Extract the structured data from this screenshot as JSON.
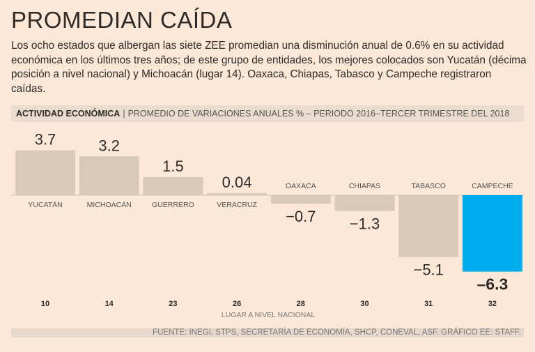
{
  "title": "PROMEDIAN CAÍDA",
  "lede": "Los ocho estados que albergan las siete ZEE promedian una disminución anual de 0.6% en su actividad económica en los últimos tres años; de este grupo de entidades, los mejores colocados son Yucatán (décima posición a nivel nacional) y Michoacán (lugar 14). Oaxaca, Chiapas, Tabasco y Campeche registraron caídas.",
  "header": {
    "label": "ACTIVIDAD ECONÓMICA",
    "subtitle": "PROMEDIO DE VARIACIONES ANUALES % – PERIODO 2016–TERCER TRIMESTRE DEL 2018"
  },
  "chart_data": {
    "type": "bar",
    "categories": [
      "YUCATÁN",
      "MICHOACÁN",
      "GUERRERO",
      "VERACRUZ",
      "OAXACA",
      "CHIAPAS",
      "TABASCO",
      "CAMPECHE"
    ],
    "values": [
      3.7,
      3.2,
      1.5,
      0.04,
      -0.7,
      -1.3,
      -5.1,
      -6.3
    ],
    "value_labels": [
      "3.7",
      "3.2",
      "1.5",
      "0.04",
      "−0.7",
      "−1.3",
      "−5.1",
      "–6.3"
    ],
    "ranks": [
      "10",
      "14",
      "23",
      "26",
      "28",
      "30",
      "31",
      "32"
    ],
    "rank_label": "LUGAR A NIVEL NACIONAL",
    "highlight": "CAMPECHE",
    "colors": {
      "bar": "#d9c9b8",
      "highlight": "#00aeef",
      "background": "#fde8d8"
    }
  },
  "source": "FUENTE: INEGI, STPS, SECRETARÍA DE ECONOMÍA, SHCP, CONEVAL, ASF. GRÁFICO EE: STAFF."
}
